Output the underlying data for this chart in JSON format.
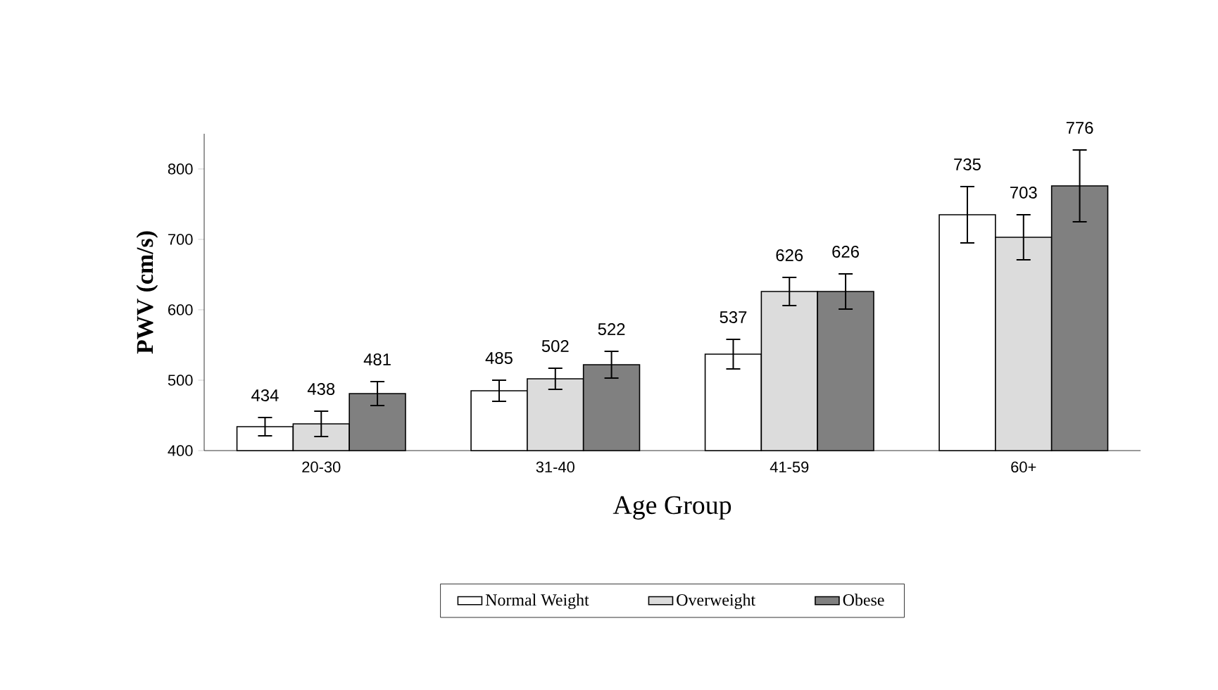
{
  "chart_data": {
    "type": "bar",
    "xlabel": "Age Group",
    "ylabel": "PWV (cm/s)",
    "categories": [
      "20-30",
      "31-40",
      "41-59",
      "60+"
    ],
    "series": [
      {
        "name": "Normal Weight",
        "color": "#ffffff",
        "values": [
          434,
          485,
          537,
          735
        ],
        "errors": [
          13,
          15,
          21,
          40
        ]
      },
      {
        "name": "Overweight",
        "color": "#dcdcdc",
        "values": [
          438,
          502,
          626,
          703
        ],
        "errors": [
          18,
          15,
          20,
          32
        ]
      },
      {
        "name": "Obese",
        "color": "#808080",
        "values": [
          481,
          522,
          626,
          776
        ],
        "errors": [
          17,
          19,
          25,
          51
        ]
      }
    ],
    "ylim": [
      400,
      850
    ],
    "yticks": [
      400,
      500,
      600,
      700,
      800
    ],
    "data_labels": true,
    "legend": "bottom",
    "grid": false
  }
}
